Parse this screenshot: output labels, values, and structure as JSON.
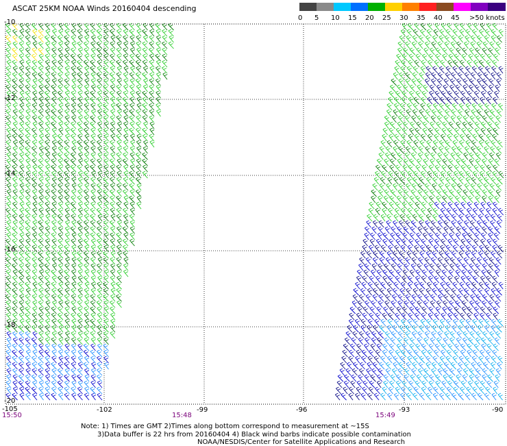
{
  "title": "ASCAT 25KM NOAA Winds 20160404 descending",
  "legend": {
    "labels": [
      "0",
      "5",
      "10",
      "15",
      "20",
      "25",
      "30",
      "35",
      "40",
      "45",
      ">50 knots"
    ],
    "colors": [
      "#444444",
      "#8a8a8a",
      "#00c8ff",
      "#0070ff",
      "#00b000",
      "#ffd000",
      "#ff8000",
      "#ff2020",
      "#8a4a20",
      "#ff00ff",
      "#8000c0",
      "#3a0080"
    ]
  },
  "axes": {
    "lat_labels": [
      "-10",
      "-12",
      "-14",
      "-16",
      "-18",
      "-20"
    ],
    "lon_labels": [
      "-105",
      "-102",
      "-99",
      "-96",
      "-93",
      "-90"
    ]
  },
  "swath_times": [
    "15:50",
    "15:48",
    "15:49"
  ],
  "notes": {
    "line1": "Note: 1) Times are GMT 2)Times along bottom correspond to measurement at ~15S",
    "line2": "3)Data buffer is 22 hrs from 20160404 4) Black wind barbs indicate possible contamination",
    "line3": "NOAA/NESDIS/Center for Satellite Applications and Research"
  },
  "colors": {
    "light_green": "#22cc22",
    "dark_green": "#007a00",
    "blue": "#0000cc",
    "navy": "#000080",
    "light_blue": "#1a8cff",
    "cyan": "#00aaee",
    "yellow": "#f5e000"
  }
}
